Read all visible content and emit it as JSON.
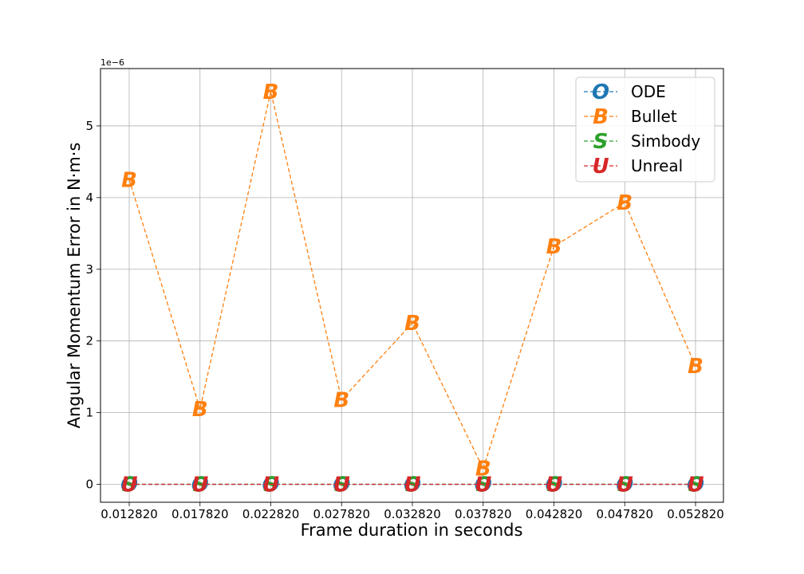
{
  "chart_data": {
    "type": "line",
    "title": "",
    "xlabel": "Frame duration in seconds",
    "ylabel": "Angular Momentum Error in N·m·s",
    "y_offset_text": "1e−6",
    "x": [
      "0.012820",
      "0.017820",
      "0.022820",
      "0.027820",
      "0.032820",
      "0.037820",
      "0.042820",
      "0.047820",
      "0.052820"
    ],
    "yticks": [
      "0",
      "1",
      "2",
      "3",
      "4",
      "5"
    ],
    "ylim": [
      -0.25,
      5.8
    ],
    "grid": true,
    "legend_position": "top-right",
    "series": [
      {
        "name": "ODE",
        "marker": "O",
        "color": "#1f77b4",
        "values": [
          0,
          0,
          0,
          0,
          0,
          0,
          0,
          0,
          0
        ]
      },
      {
        "name": "Bullet",
        "marker": "B",
        "color": "#ff7f0e",
        "values": [
          4.25,
          1.05,
          5.48,
          1.18,
          2.25,
          0.22,
          3.32,
          3.93,
          1.65
        ]
      },
      {
        "name": "Simbody",
        "marker": "S",
        "color": "#2ca02c",
        "values": [
          0,
          0,
          0,
          0,
          0,
          0,
          0,
          0,
          0
        ]
      },
      {
        "name": "Unreal",
        "marker": "U",
        "color": "#d62728",
        "values": [
          0,
          0,
          0,
          0,
          0,
          0,
          0,
          0,
          0
        ]
      }
    ]
  }
}
